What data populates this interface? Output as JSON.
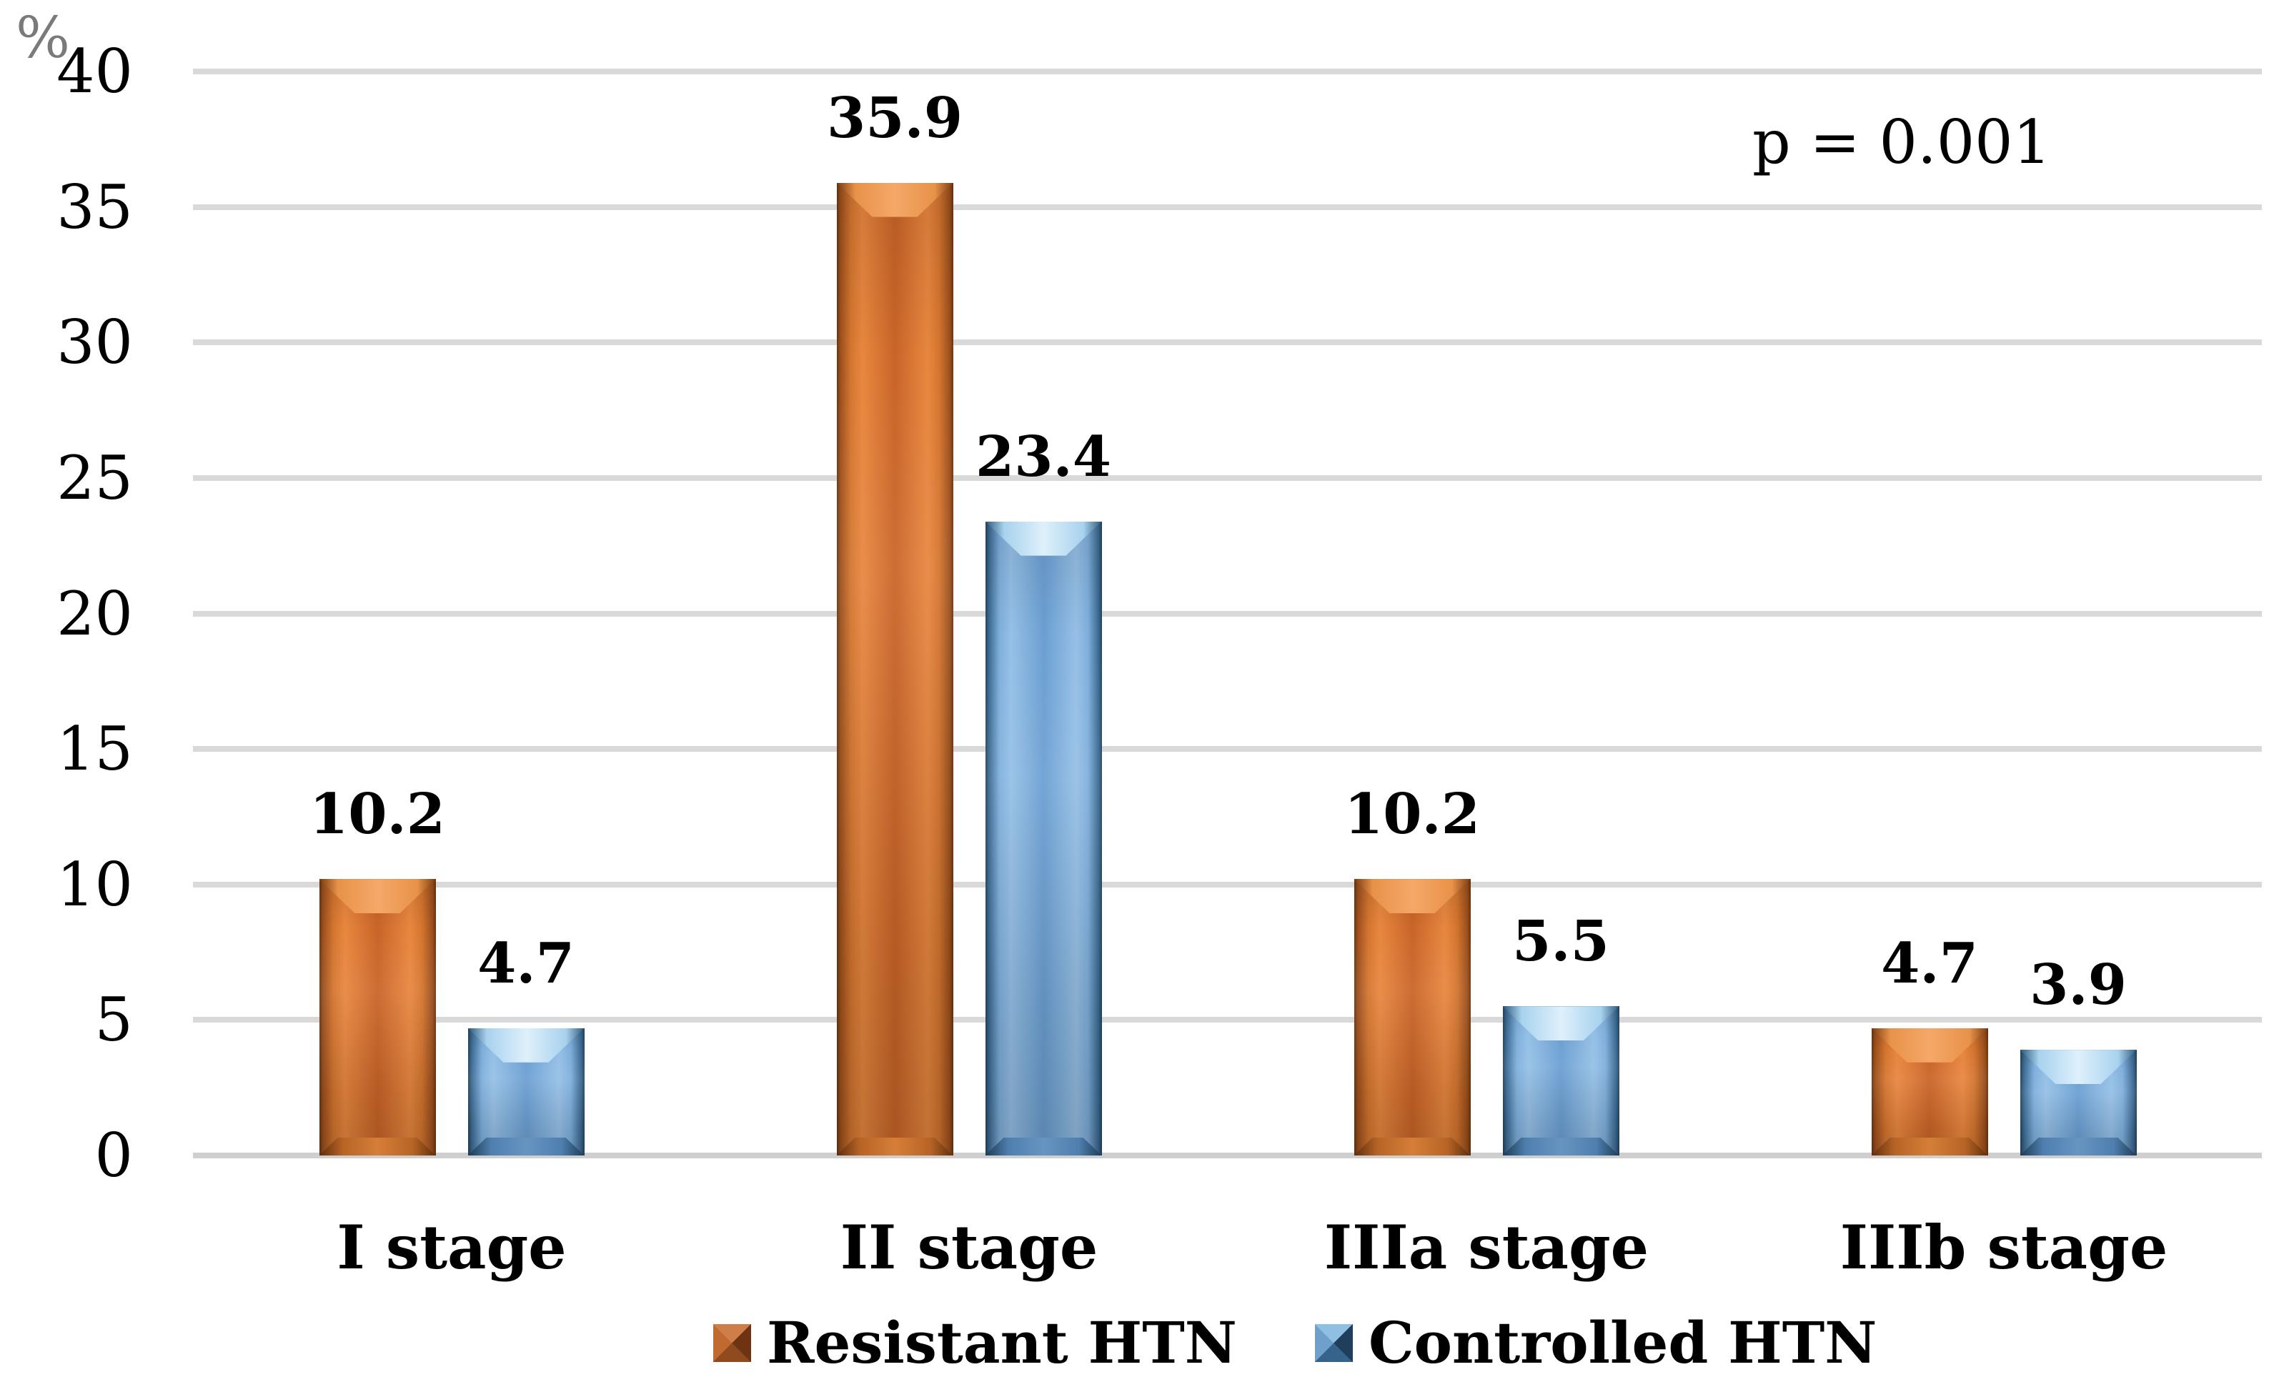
{
  "figure": {
    "y_unit_label": "%",
    "p_value_annotation": "p = 0.001"
  },
  "chart_data": {
    "type": "bar",
    "categories": [
      "I stage",
      "II stage",
      "IIIa stage",
      "IIIb stage"
    ],
    "series": [
      {
        "name": "Resistant HTN",
        "color": "#c96428",
        "values": [
          10.2,
          35.9,
          10.2,
          4.7
        ]
      },
      {
        "name": "Controlled HTN",
        "color": "#6b9fd2",
        "values": [
          4.7,
          23.4,
          5.5,
          3.9
        ]
      }
    ],
    "title": "",
    "xlabel": "",
    "ylabel": "%",
    "ylim": [
      0,
      40
    ],
    "yticks": [
      0,
      5,
      10,
      15,
      20,
      25,
      30,
      35,
      40
    ],
    "grid": true,
    "data_labels": true,
    "legend_position": "bottom",
    "annotations": [
      "p = 0.001"
    ],
    "gridline_color": "#d9d9d9",
    "label_color": "#000000",
    "y_unit_color": "#7a7a7a"
  }
}
